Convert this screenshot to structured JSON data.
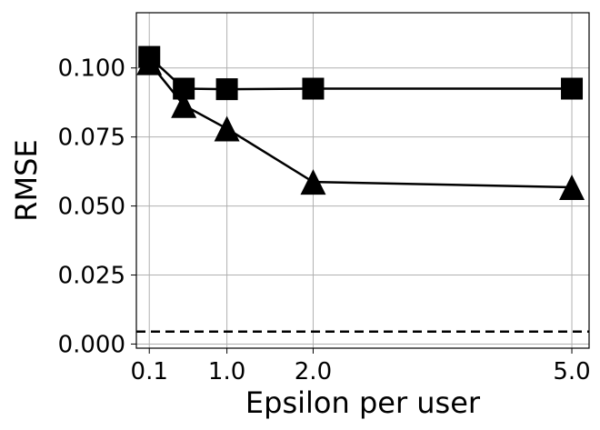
{
  "chart_data": {
    "type": "line",
    "title": "",
    "xlabel": "Epsilon per user",
    "ylabel": "RMSE",
    "xlim": [
      -0.05,
      5.2
    ],
    "ylim": [
      -0.0015,
      0.12
    ],
    "grid": true,
    "legend": "none",
    "x_ticks": [
      0.1,
      1.0,
      2.0,
      5.0
    ],
    "x_tick_labels": [
      "0.1",
      "1.0",
      "2.0",
      "5.0"
    ],
    "y_ticks": [
      0.0,
      0.025,
      0.05,
      0.075,
      0.1
    ],
    "y_tick_labels": [
      "0.000",
      "0.025",
      "0.050",
      "0.075",
      "0.100"
    ],
    "series": [
      {
        "marker": "square",
        "color": "#000000",
        "x": [
          0.1,
          0.5,
          1.0,
          2.0,
          5.0
        ],
        "y": [
          0.104,
          0.0925,
          0.0923,
          0.0925,
          0.0925
        ]
      },
      {
        "marker": "triangle",
        "color": "#000000",
        "x": [
          0.1,
          0.5,
          1.0,
          2.0,
          5.0
        ],
        "y": [
          0.102,
          0.0865,
          0.078,
          0.0587,
          0.0568
        ]
      }
    ],
    "reference_lines": [
      {
        "orientation": "horizontal",
        "y": 0.0045,
        "style": "dashed",
        "color": "#000000"
      }
    ]
  }
}
